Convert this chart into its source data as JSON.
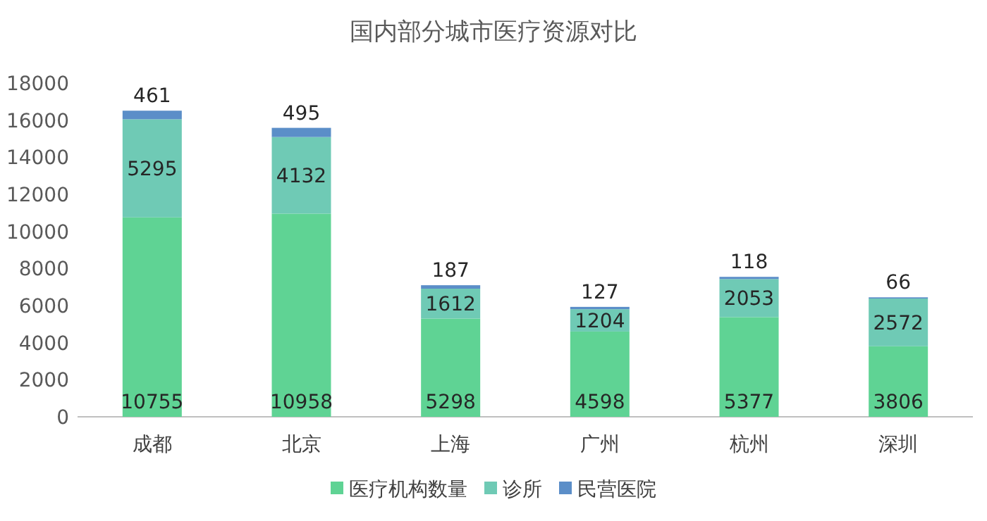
{
  "chart_data": {
    "type": "bar",
    "stacked": true,
    "title": "国内部分城市医疗资源对比",
    "categories": [
      "成都",
      "北京",
      "上海",
      "广州",
      "杭州",
      "深圳"
    ],
    "series": [
      {
        "name": "医疗机构数量",
        "color": "#5fd394",
        "values": [
          10755,
          10958,
          5298,
          4598,
          5377,
          3806
        ]
      },
      {
        "name": "诊所",
        "color": "#6fcab5",
        "values": [
          5295,
          4132,
          1612,
          1204,
          2053,
          2572
        ]
      },
      {
        "name": "民营医院",
        "color": "#5b8ec8",
        "values": [
          461,
          495,
          187,
          127,
          118,
          66
        ]
      }
    ],
    "ylim": [
      0,
      18000
    ],
    "yticks": [
      0,
      2000,
      4000,
      6000,
      8000,
      10000,
      12000,
      14000,
      16000,
      18000
    ],
    "data_labels": true,
    "legend": "bottom",
    "grid": false
  }
}
